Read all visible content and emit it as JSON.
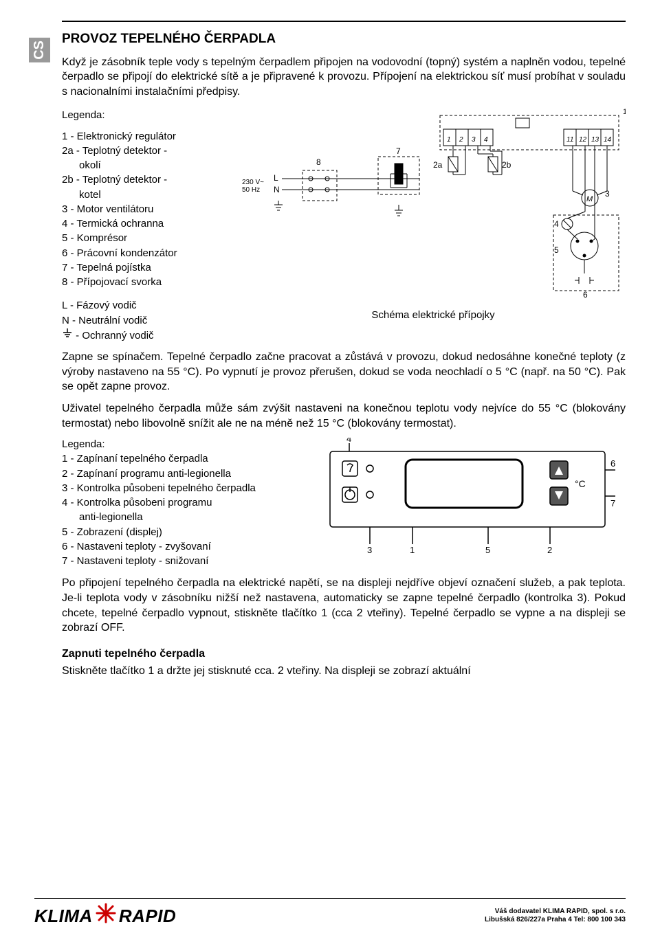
{
  "lang_tab": "CS",
  "title": "PROVOZ TEPELNÉHO ČERPADLA",
  "intro1": "Když je zásobník teple vody s tepelným čerpadlem připojen na vodovodní (topný) systém a naplněn vodou, tepelné čerpadlo se připojí do elektrické sítě a je připravené k provozu. Přípojení na elektrickou síť musí probíhat v souladu s nacionalními instalačními předpisy.",
  "legend_title": "Legenda:",
  "legend1": [
    "1 - Elektronický regulátor",
    "2a - Teplotný detektor -",
    "      okolí",
    "2b - Teplotný detektor -",
    "      kotel",
    "3 - Motor ventilátoru",
    "4 - Termická ochranna",
    "5 - Komprésor",
    "6 - Prácovní kondenzátor",
    "7 - Tepelná pojístka",
    "8 - Přípojovací svorka"
  ],
  "legend1b": [
    "L - Fázový vodič",
    "N - Neutrální vodič"
  ],
  "ground_label": " - Ochranný vodič",
  "schematic_caption": "Schéma elektrické přípojky",
  "schematic": {
    "supply": "230 V~\n50 Hz",
    "L": "L",
    "N": "N",
    "labels": [
      "1",
      "2",
      "3",
      "4",
      "5",
      "6",
      "7",
      "8",
      "2a",
      "2b",
      "11",
      "12",
      "13",
      "14",
      "1",
      "2",
      "3",
      "4"
    ]
  },
  "para2": "Zapne se spínačem. Tepelné čerpadlo začne pracovat a zůstává v provozu, dokud nedosáhne konečné teploty (z výroby nastaveno na 55 °C). Po vypnutí je provoz přerušen, dokud se voda neochladí o 5 °C (např. na 50 °C). Pak se opět zapne provoz.",
  "para3": "Uživatel tepelného čerpadla může sám zvýšit nastaveni na konečnou teplotu vody nejvíce do 55 °C (blokovány termostat) nebo libovolně snížit ale ne na méně než 15 °C (blokovány termostat).",
  "legend2_title": "Legenda:",
  "legend2": [
    "1 - Zapínaní tepelného čerpadla",
    "2 - Zapínaní programu anti-legionella",
    "3 - Kontrolka působeni tepelného čerpadla",
    "4 - Kontrolka působeni programu",
    "      anti-legionella",
    "5 - Zobrazení (displej)",
    "6 - Nastaveni teploty - zvyšovaní",
    "7 - Nastaveni teploty - snižovaní"
  ],
  "panel": {
    "callouts": [
      "1",
      "2",
      "3",
      "4",
      "5",
      "6",
      "7"
    ],
    "unit": "°C"
  },
  "para4": "Po připojení tepelného čerpadla na elektrické napětí, se na displeji nejdříve objeví označení služeb, a pak teplota. Je-li teplota vody v zásobníku nižší než nastavena, automaticky se zapne tepelné čerpadlo (kontrolka 3). Pokud chcete, tepelné čerpadlo vypnout, stiskněte tlačítko 1 (cca 2 vteřiny). Tepelné čerpadlo se vypne a na displeji se zobrazí OFF.",
  "h2": "Zapnuti tepelného čerpadla",
  "para5": "Stiskněte tlačítko 1 a držte jej stisknuté cca. 2 vteřiny. Na displeji se zobrazí aktuální",
  "footer": {
    "brand1": "KLIMA",
    "brand2": "RAPID",
    "addr1": "Váš dodavatel KLIMA RAPID, spol. s r.o.",
    "addr2": "Libušská 826/227a  Praha 4   Tel: 800 100 343"
  }
}
